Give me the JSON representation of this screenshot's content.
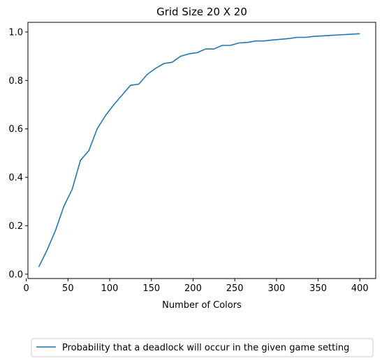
{
  "chart_data": {
    "type": "line",
    "title": "Grid Size 20 X 20",
    "xlabel": "Number of Colors",
    "ylabel": "",
    "xlim": [
      2,
      419
    ],
    "ylim": [
      -0.018,
      1.04
    ],
    "xticks": [
      0,
      50,
      100,
      150,
      200,
      250,
      300,
      350,
      400
    ],
    "xtick_labels": [
      "0",
      "50",
      "100",
      "150",
      "200",
      "250",
      "300",
      "350",
      "400"
    ],
    "yticks": [
      0.0,
      0.2,
      0.4,
      0.6,
      0.8,
      1.0
    ],
    "ytick_labels": [
      "0.0",
      "0.2",
      "0.4",
      "0.6",
      "0.8",
      "1.0"
    ],
    "grid": false,
    "legend_position": "below-center",
    "series": [
      {
        "name": "Probability that a deadlock will occur in the given game setting",
        "color": "#1f77b4",
        "x": [
          15,
          25,
          35,
          45,
          55,
          65,
          75,
          85,
          95,
          105,
          115,
          125,
          135,
          145,
          155,
          165,
          175,
          185,
          195,
          205,
          215,
          225,
          235,
          245,
          255,
          265,
          275,
          285,
          295,
          305,
          315,
          325,
          335,
          345,
          355,
          365,
          375,
          385,
          400
        ],
        "y": [
          0.03,
          0.1,
          0.18,
          0.28,
          0.35,
          0.47,
          0.51,
          0.6,
          0.655,
          0.7,
          0.74,
          0.78,
          0.785,
          0.825,
          0.85,
          0.87,
          0.875,
          0.9,
          0.91,
          0.915,
          0.93,
          0.93,
          0.945,
          0.945,
          0.955,
          0.957,
          0.963,
          0.963,
          0.967,
          0.97,
          0.973,
          0.978,
          0.978,
          0.982,
          0.984,
          0.986,
          0.988,
          0.99,
          0.993
        ]
      }
    ]
  }
}
